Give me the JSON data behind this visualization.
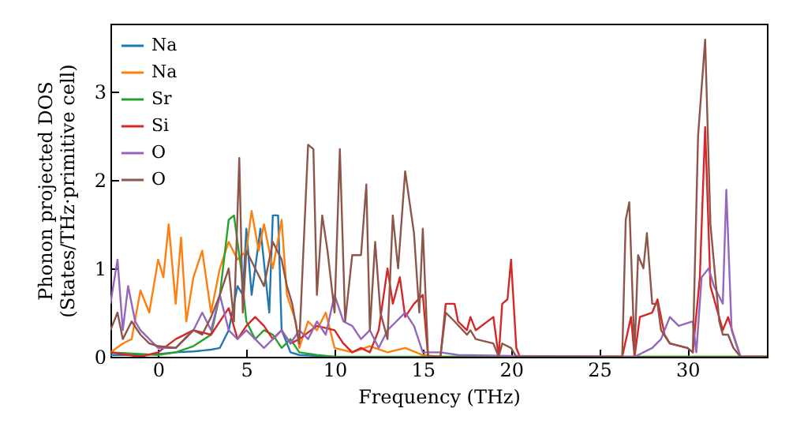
{
  "chart_data": {
    "type": "line",
    "xlabel": "Frequency (THz)",
    "ylabel": "Phonon projected DOS\n(States/THz·primitive cell)",
    "xlim": [
      -2.7,
      34.5
    ],
    "ylim": [
      0,
      3.77
    ],
    "xticks": [
      0,
      5,
      10,
      15,
      20,
      25,
      30
    ],
    "yticks": [
      0,
      1,
      2,
      3
    ],
    "grid": false,
    "legend": "top left",
    "series": [
      {
        "name": "Na",
        "color": "#1f77b4",
        "x": [
          -2.7,
          -1,
          0,
          1,
          2,
          3,
          3.5,
          4,
          4.5,
          4.8,
          5,
          5.3,
          5.8,
          6.3,
          6.5,
          6.8,
          7,
          7.5,
          8,
          9,
          10
        ],
        "values": [
          0.02,
          0.02,
          0.03,
          0.05,
          0.06,
          0.08,
          0.1,
          0.3,
          0.8,
          0.7,
          1.45,
          0.7,
          1.45,
          0.5,
          1.6,
          1.6,
          0.3,
          0.05,
          0.02,
          0.01,
          0
        ]
      },
      {
        "name": "Na",
        "color": "#ff7f0e",
        "x": [
          -2.7,
          -2,
          -1.5,
          -1,
          -0.5,
          0,
          0.3,
          0.6,
          1,
          1.3,
          1.6,
          2,
          2.5,
          3,
          3.5,
          4,
          4.5,
          5,
          5.3,
          5.7,
          6,
          6.5,
          7,
          7.3,
          7.8,
          8,
          8.5,
          9,
          9.5,
          10,
          11,
          12,
          13,
          14,
          15,
          16,
          34.5
        ],
        "values": [
          0.05,
          0.15,
          0.2,
          0.75,
          0.5,
          1.1,
          0.9,
          1.5,
          0.6,
          1.35,
          0.4,
          0.9,
          1.2,
          0.5,
          1.0,
          1.3,
          1.1,
          1.2,
          1.65,
          1.2,
          1.5,
          1.0,
          1.55,
          0.7,
          0.4,
          0.1,
          0.4,
          0.3,
          0.5,
          0.1,
          0.05,
          0.12,
          0.05,
          0.1,
          0.02,
          0,
          0
        ]
      },
      {
        "name": "Sr",
        "color": "#2ca02c",
        "x": [
          -2.7,
          0,
          1,
          2,
          3,
          3.5,
          4,
          4.3,
          4.7,
          5,
          5.5,
          6,
          6.5,
          7,
          7.5,
          8,
          9,
          10,
          34.5
        ],
        "values": [
          0.05,
          0.02,
          0.05,
          0.12,
          0.25,
          0.7,
          1.55,
          1.6,
          1.0,
          0.4,
          0.2,
          0.3,
          0.25,
          0.1,
          0.2,
          0.05,
          0.02,
          0,
          0
        ]
      },
      {
        "name": "Si",
        "color": "#d62728",
        "x": [
          -2.7,
          -1,
          0,
          1,
          2,
          3,
          4,
          4.5,
          5,
          5.5,
          6,
          6.5,
          7,
          7.5,
          8,
          9,
          10,
          10.5,
          11,
          11.5,
          12,
          12.5,
          13,
          13.3,
          13.7,
          14,
          14.5,
          15,
          15.3,
          16,
          16.3,
          16.8,
          17,
          17.5,
          17.7,
          18,
          19,
          19.3,
          19.5,
          19.8,
          20,
          20.3,
          20.5,
          26.3,
          26.8,
          27,
          27.3,
          28,
          28.3,
          28.7,
          29,
          30,
          30.3,
          30.7,
          31,
          31.3,
          32,
          32.3,
          32.6,
          33,
          34.5
        ],
        "values": [
          0.05,
          0,
          0.05,
          0.2,
          0.3,
          0.25,
          0.55,
          0.2,
          0.35,
          0.45,
          0.35,
          0.2,
          0.3,
          0.15,
          0.2,
          0.35,
          0.3,
          0.15,
          0.05,
          0.1,
          0.05,
          0.3,
          1.0,
          0.6,
          0.9,
          0.45,
          0.6,
          0.7,
          0,
          0,
          0.6,
          0.6,
          0.4,
          0.3,
          0.45,
          0.3,
          0.45,
          0,
          0.6,
          0.65,
          1.1,
          0.1,
          0,
          0,
          0.45,
          0,
          0.45,
          0.5,
          0.65,
          0.25,
          0.15,
          0.1,
          0.05,
          0.9,
          2.6,
          0.8,
          0.3,
          0.45,
          0.25,
          0,
          0
        ]
      },
      {
        "name": "O",
        "color": "#9467bd",
        "x": [
          -2.7,
          -2.3,
          -2,
          -1.7,
          -1.3,
          -1,
          0,
          1,
          2,
          2.5,
          3,
          3.5,
          4,
          4.5,
          5,
          6,
          7,
          7.5,
          8,
          8.5,
          9,
          9.5,
          10,
          10.5,
          11,
          11.5,
          12,
          12.5,
          13,
          13.5,
          14,
          14.5,
          15,
          16,
          17,
          20,
          27,
          28,
          28.5,
          29,
          29.5,
          30.3,
          30.5,
          30.8,
          31.2,
          31.5,
          32,
          32.2,
          32.5,
          33,
          34.5
        ],
        "values": [
          0.6,
          1.1,
          0.3,
          0.8,
          0.4,
          0.3,
          0.1,
          0.1,
          0.3,
          0.5,
          0.3,
          0.7,
          0.3,
          0.2,
          0.3,
          0.1,
          0.3,
          0.15,
          0.3,
          0.2,
          0.4,
          0.25,
          0.7,
          0.4,
          0.35,
          0.2,
          0.3,
          0.1,
          0.3,
          0.4,
          0.5,
          0.35,
          0.05,
          0.05,
          0.02,
          0.01,
          0,
          0.1,
          0.2,
          0.45,
          0.35,
          0.4,
          0.05,
          0.9,
          1.0,
          0.8,
          0.6,
          1.89,
          0.3,
          0,
          0
        ]
      },
      {
        "name": "O",
        "color": "#8c564b",
        "x": [
          -2.7,
          -2.3,
          -2,
          -1.5,
          -1,
          -0.5,
          0,
          1,
          1.5,
          2,
          2.5,
          3,
          3.5,
          4,
          4.3,
          4.6,
          4.8,
          5,
          5.5,
          6,
          6.5,
          7,
          7.3,
          7.6,
          8,
          8.5,
          8.8,
          9,
          9.3,
          9.6,
          10,
          10.3,
          10.6,
          11,
          11.5,
          11.8,
          12,
          12.3,
          12.6,
          13,
          13.3,
          13.6,
          14,
          14.5,
          14.8,
          15,
          15.3,
          16,
          16.3,
          16.8,
          17.5,
          17.7,
          18,
          19,
          19.3,
          19.5,
          20,
          20.3,
          26.3,
          26.5,
          26.7,
          27,
          27.2,
          27.5,
          27.7,
          28,
          28.3,
          28.5,
          29,
          30,
          30.3,
          30.6,
          31,
          31.3,
          31.8,
          32,
          32.3,
          32.6,
          33,
          34.5
        ],
        "values": [
          0.3,
          0.5,
          0.2,
          0.4,
          0.25,
          0.15,
          0.12,
          0.1,
          0.2,
          0.3,
          0.25,
          0.45,
          0.7,
          1.0,
          0.4,
          2.25,
          0.5,
          1.2,
          1.0,
          0.8,
          1.3,
          1.1,
          0.8,
          0.6,
          0.15,
          2.4,
          2.35,
          0.7,
          1.6,
          1.2,
          0.5,
          2.35,
          0.4,
          1.15,
          1.15,
          1.95,
          0.3,
          1.3,
          0.5,
          0.2,
          1.6,
          1.0,
          2.1,
          1.4,
          0.5,
          1.45,
          0,
          0,
          0.5,
          0.4,
          0.25,
          0.3,
          0.2,
          0.15,
          0,
          0.15,
          0.1,
          0,
          0,
          1.55,
          1.75,
          0.05,
          1.15,
          1.0,
          1.4,
          0.6,
          0.6,
          0.3,
          0.15,
          0.1,
          0.05,
          2.5,
          3.59,
          1.5,
          0.4,
          0.25,
          0.25,
          0.1,
          0,
          0
        ]
      }
    ]
  }
}
